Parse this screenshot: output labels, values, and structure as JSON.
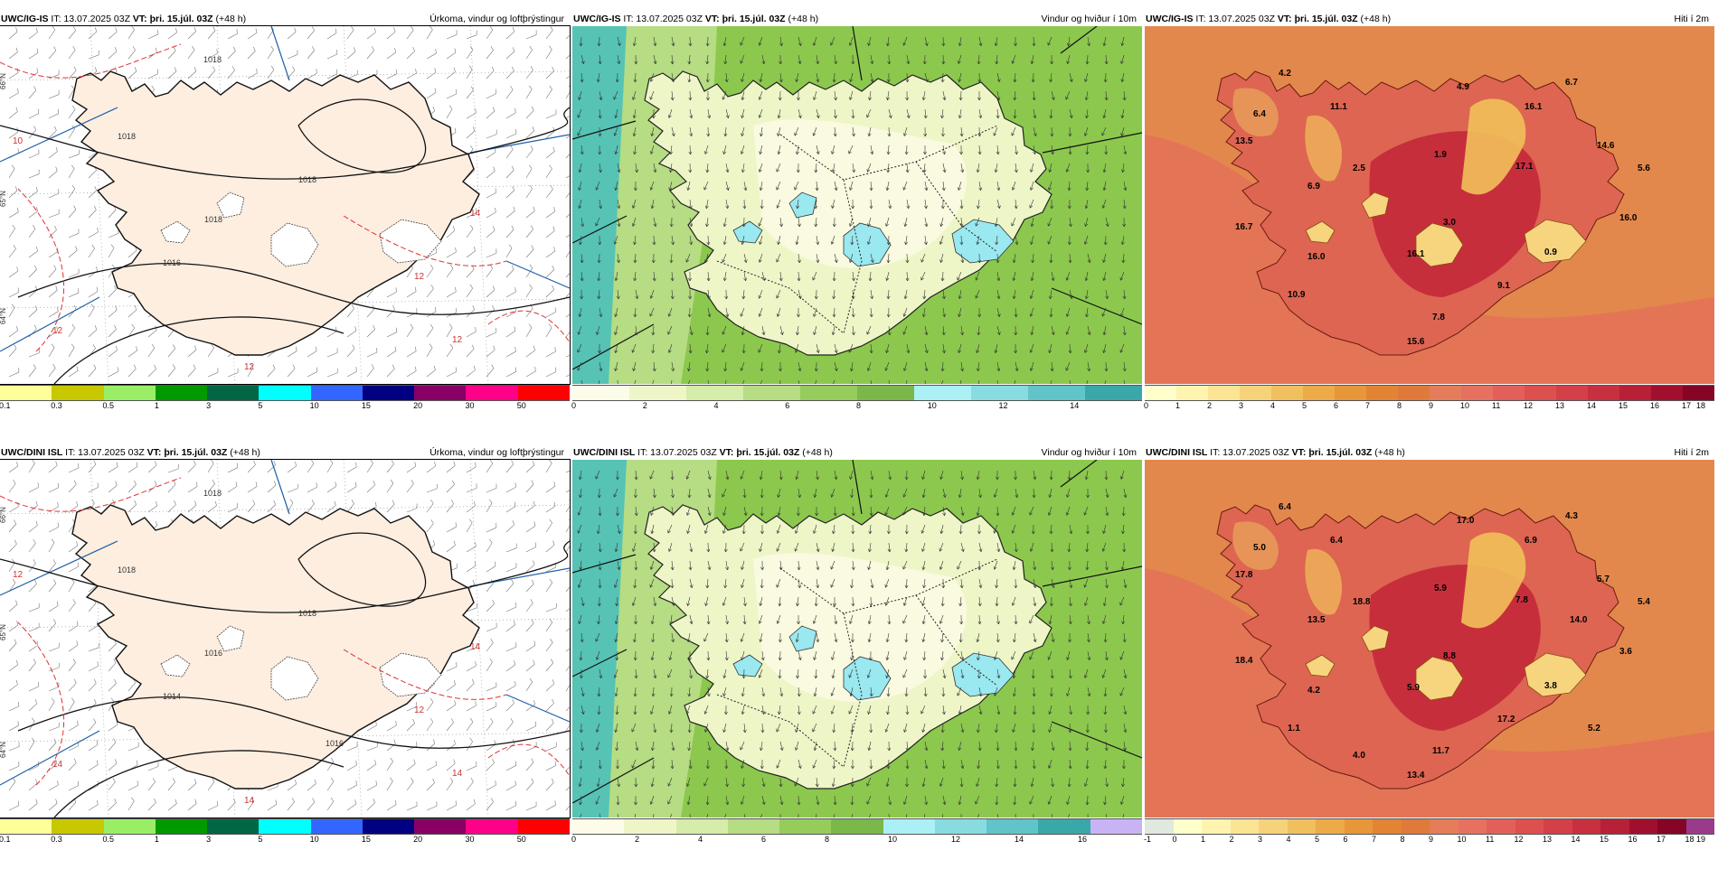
{
  "panels": [
    {
      "id": "p-top-precip",
      "model": "UWC/IG-IS",
      "it": "IT: 13.07.2025 03Z",
      "vt_label": "VT:",
      "vt_value": "þri. 15.júl. 03Z",
      "lead": "(+48 h)",
      "title": "Úrkoma, vindur og loftþrýstingur",
      "kind": "precip",
      "colorbar": {
        "colors": [
          "#ffff99",
          "#c8c800",
          "#99ee66",
          "#009900",
          "#006644",
          "#00ffff",
          "#3366ff",
          "#000080",
          "#880066",
          "#ff0088",
          "#ff0000"
        ],
        "ticks": [
          "0.1",
          "0.3",
          "0.5",
          "1",
          "3",
          "5",
          "10",
          "15",
          "20",
          "30",
          "50"
        ]
      },
      "isobar_labels": [
        "1018",
        "1018",
        "1018",
        "1018",
        "1016"
      ],
      "red_labels": [
        "10",
        "12",
        "12",
        "12",
        "14",
        "12"
      ],
      "lat_labels": [
        "66°N",
        "65°N",
        "64°N"
      ]
    },
    {
      "id": "p-top-wind",
      "model": "UWC/IG-IS",
      "it": "IT: 13.07.2025 03Z",
      "vt_label": "VT:",
      "vt_value": "þri. 15.júl. 03Z",
      "lead": "(+48 h)",
      "title": "Vindur og hviður í 10m",
      "kind": "wind",
      "colorbar": {
        "colors": [
          "#fcfce8",
          "#eef6c8",
          "#d6ecaa",
          "#b6dc84",
          "#96cc5c",
          "#7ab84a",
          "#aaf0f4",
          "#88dce0",
          "#60c4c8",
          "#3aa8a8"
        ],
        "ticks": [
          "0",
          "2",
          "4",
          "6",
          "8",
          "10",
          "12",
          "14"
        ]
      }
    },
    {
      "id": "p-top-temp",
      "model": "UWC/IG-IS",
      "it": "IT: 13.07.2025 03Z",
      "vt_label": "VT:",
      "vt_value": "þri. 15.júl. 03Z",
      "lead": "(+48 h)",
      "title": "Hiti í 2m",
      "kind": "temp",
      "colorbar": {
        "colors": [
          "#ffffcc",
          "#fff3b0",
          "#fbe494",
          "#f6d37a",
          "#f0bf5e",
          "#ecaa48",
          "#e8963a",
          "#e38434",
          "#e07a3a",
          "#e57d5a",
          "#e77160",
          "#e3605a",
          "#dd5050",
          "#d44048",
          "#c83040",
          "#b82038",
          "#a0102e",
          "#860426"
        ],
        "ticks": [
          "0",
          "1",
          "2",
          "3",
          "4",
          "5",
          "6",
          "7",
          "8",
          "9",
          "10",
          "11",
          "12",
          "13",
          "14",
          "15",
          "16",
          "17",
          "18"
        ]
      },
      "labels": [
        "4.2",
        "6.4",
        "11.1",
        "13.5",
        "4.9",
        "6.7",
        "16.1",
        "14.6",
        "5.6",
        "2.5",
        "1.9",
        "17.1",
        "6.9",
        "3.0",
        "16.0",
        "16.7",
        "16.0",
        "16.1",
        "0.9",
        "10.9",
        "9.1",
        "7.8",
        "15.6"
      ]
    },
    {
      "id": "p-bot-precip",
      "model": "UWC/DINI ISL",
      "it": "IT: 13.07.2025 03Z",
      "vt_label": "VT:",
      "vt_value": "þri. 15.júl. 03Z",
      "lead": "(+48 h)",
      "title": "Úrkoma, vindur og loftþrýstingur",
      "kind": "precip",
      "colorbar": {
        "colors": [
          "#ffff99",
          "#c8c800",
          "#99ee66",
          "#009900",
          "#006644",
          "#00ffff",
          "#3366ff",
          "#000080",
          "#880066",
          "#ff0088",
          "#ff0000"
        ],
        "ticks": [
          "0.1",
          "0.3",
          "0.5",
          "1",
          "3",
          "5",
          "10",
          "15",
          "20",
          "30",
          "50"
        ]
      },
      "isobar_labels": [
        "1018",
        "1018",
        "1018",
        "1016",
        "1014",
        "1016"
      ],
      "red_labels": [
        "12",
        "14",
        "12",
        "14",
        "14",
        "14"
      ],
      "lat_labels": [
        "66°N",
        "65°N",
        "64°N"
      ]
    },
    {
      "id": "p-bot-wind",
      "model": "UWC/DINI ISL",
      "it": "IT: 13.07.2025 03Z",
      "vt_label": "VT:",
      "vt_value": "þri. 15.júl. 03Z",
      "lead": "(+48 h)",
      "title": "Vindur og hviður í 10m",
      "kind": "wind",
      "colorbar": {
        "colors": [
          "#fcfce8",
          "#eef6c8",
          "#d6ecaa",
          "#b6dc84",
          "#96cc5c",
          "#7ab84a",
          "#aaf0f4",
          "#88dce0",
          "#60c4c8",
          "#3aa8a8",
          "#c8b4f4"
        ],
        "ticks": [
          "0",
          "2",
          "4",
          "6",
          "8",
          "10",
          "12",
          "14",
          "16"
        ]
      }
    },
    {
      "id": "p-bot-temp",
      "model": "UWC/DINI ISL",
      "it": "IT: 13.07.2025 03Z",
      "vt_label": "VT:",
      "vt_value": "þri. 15.júl. 03Z",
      "lead": "(+48 h)",
      "title": "Hiti í 2m",
      "kind": "temp",
      "colorbar": {
        "colors": [
          "#e0e8e0",
          "#ffffcc",
          "#fff3b0",
          "#fbe494",
          "#f6d37a",
          "#f0bf5e",
          "#ecaa48",
          "#e8963a",
          "#e38434",
          "#e07a3a",
          "#e57d5a",
          "#e77160",
          "#e3605a",
          "#dd5050",
          "#d44048",
          "#c83040",
          "#b82038",
          "#a0102e",
          "#860426",
          "#9a3a8a"
        ],
        "ticks": [
          "-1",
          "0",
          "1",
          "2",
          "3",
          "4",
          "5",
          "6",
          "7",
          "8",
          "9",
          "10",
          "11",
          "12",
          "13",
          "14",
          "15",
          "16",
          "17",
          "18",
          "19"
        ]
      },
      "labels": [
        "6.4",
        "5.0",
        "6.4",
        "17.8",
        "17.0",
        "4.3",
        "6.9",
        "5.7",
        "5.4",
        "18.8",
        "5.9",
        "7.8",
        "13.5",
        "8.8",
        "3.6",
        "18.4",
        "4.2",
        "5.9",
        "3.8",
        "1.1",
        "17.2",
        "11.7",
        "13.4",
        "4.0",
        "14.0",
        "5.2"
      ]
    }
  ]
}
